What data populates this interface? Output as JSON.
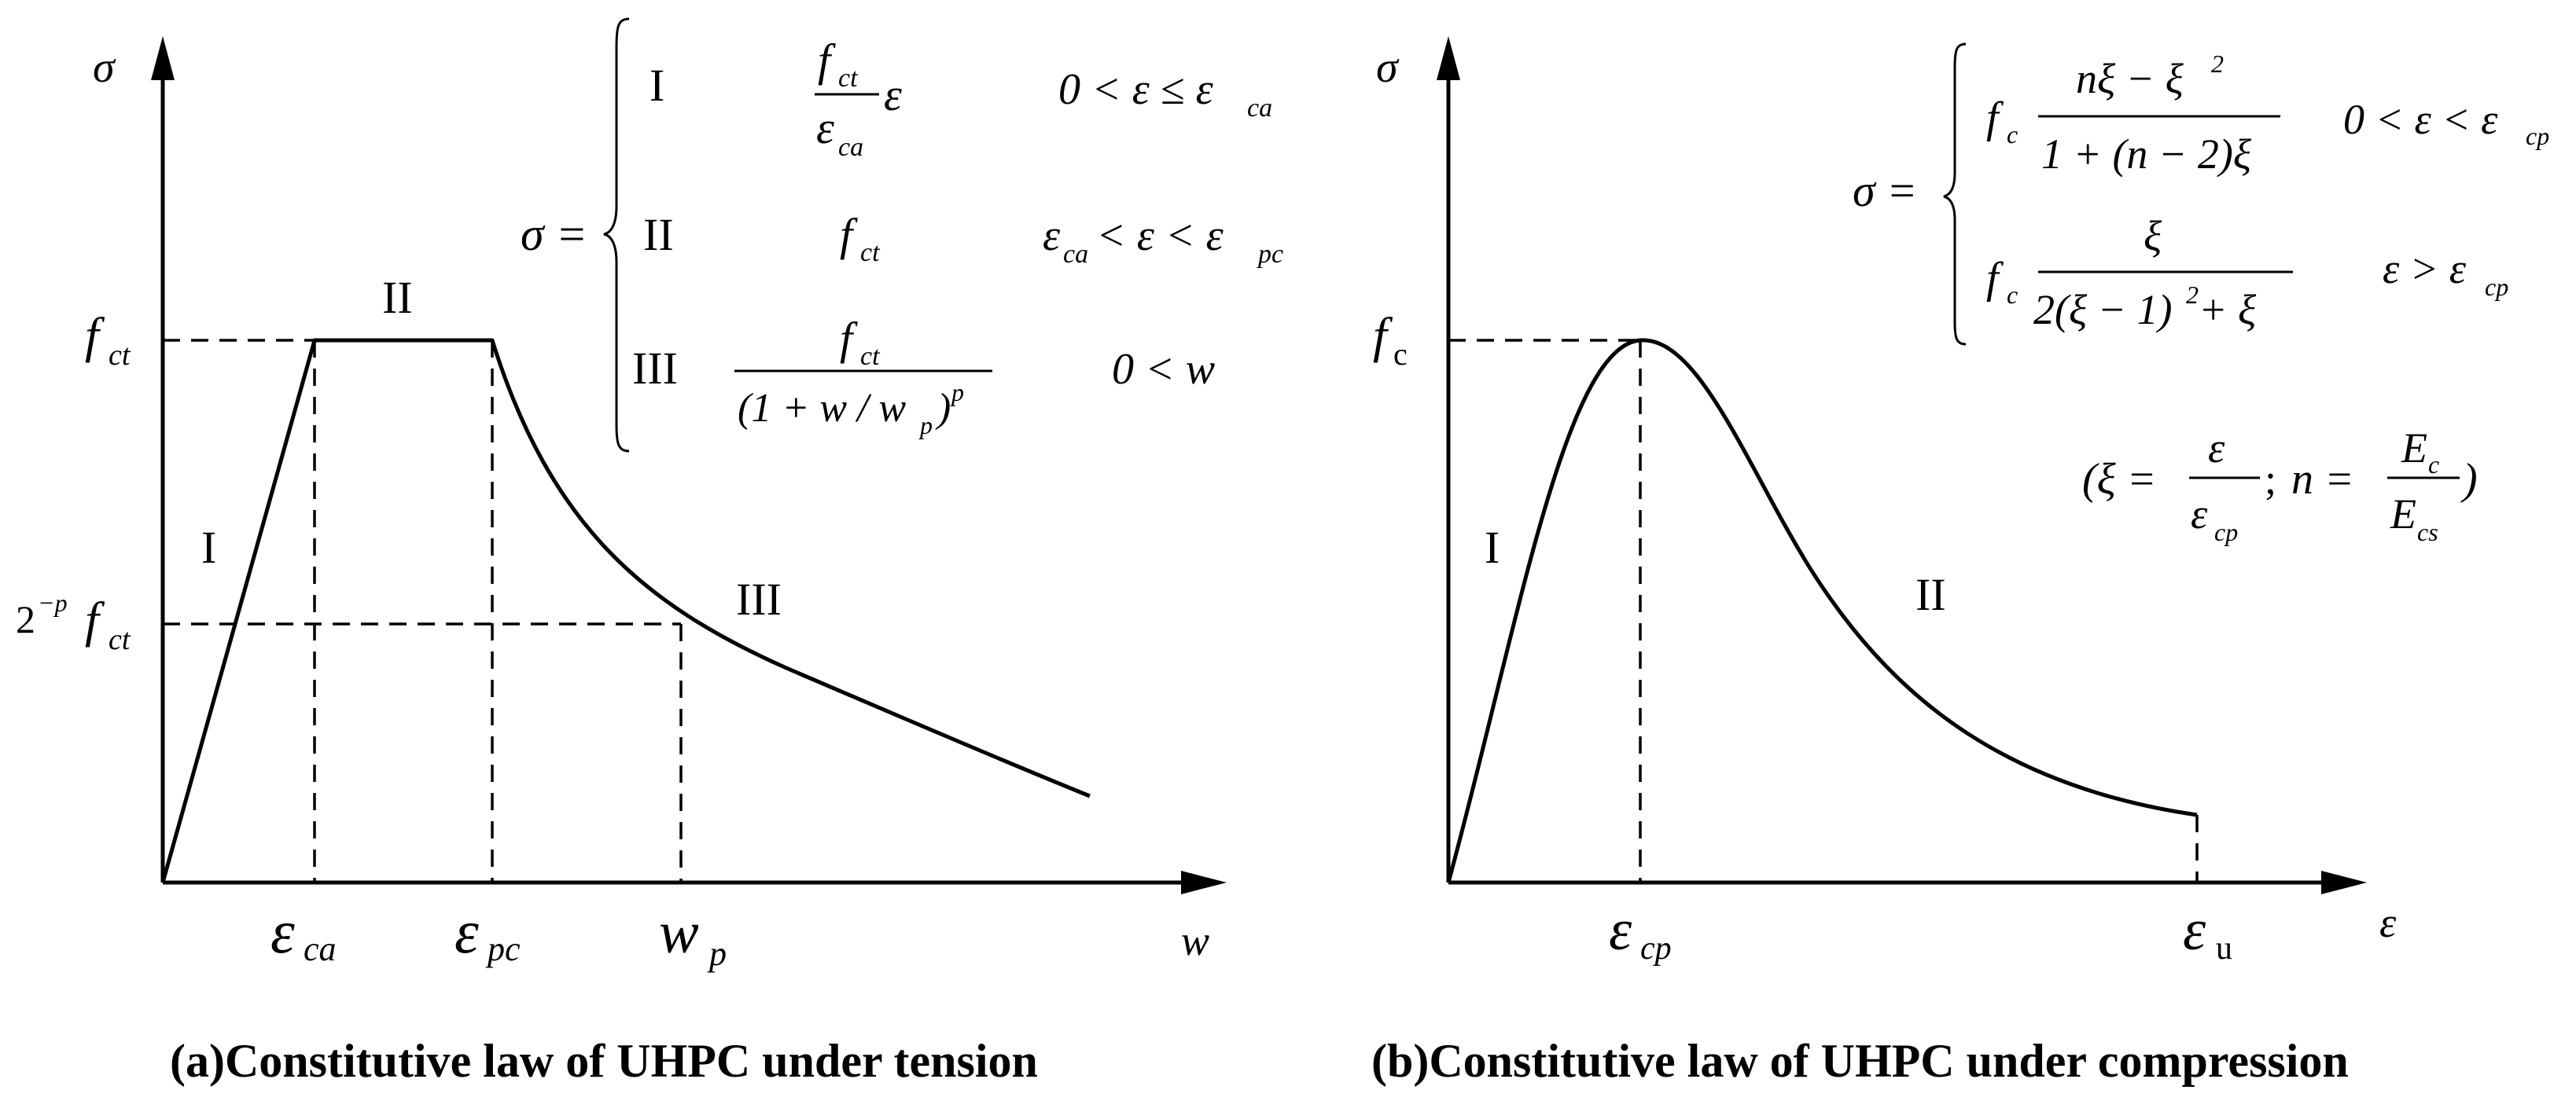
{
  "panel_a": {
    "caption": "(a)Constitutive law of UHPC under tension",
    "y_axis_label": "σ",
    "x_axis_label": "w",
    "y_ticks": {
      "f": "f",
      "ct": "ct",
      "two": "2",
      "minus_p": "−p"
    },
    "x_ticks": {
      "eps": "ε",
      "ca": "ca",
      "pc": "pc",
      "w": "w",
      "p": "p"
    },
    "regions": {
      "r1": "I",
      "r2": "II",
      "r3": "III"
    },
    "equation": {
      "sigma_eq": "σ =",
      "row1": {
        "label": "I",
        "num_f": "f",
        "num_sub": "ct",
        "den_eps": "ε",
        "den_sub": "ca",
        "tail": "ε",
        "cond": "0 < ε ≤ ε",
        "cond_sub": "ca"
      },
      "row2": {
        "label": "II",
        "expr_f": "f",
        "expr_sub": "ct",
        "cond": "ε",
        "cond_sub1": "ca",
        "cond_mid": " < ε < ε",
        "cond_sub2": "pc"
      },
      "row3": {
        "label": "III",
        "num_f": "f",
        "num_sub": "ct",
        "den": "(1 + w / w",
        "den_sub": "p",
        "den_close": ")",
        "den_sup": "p",
        "cond": "0 < w"
      }
    }
  },
  "panel_b": {
    "caption": "(b)Constitutive law of UHPC under compression",
    "y_axis_label": "σ",
    "x_axis_label": "ε",
    "y_ticks": {
      "f": "f",
      "c": "c"
    },
    "x_ticks": {
      "eps": "ε",
      "cp": "cp",
      "u": "u"
    },
    "regions": {
      "r1": "I",
      "r2": "II"
    },
    "equation": {
      "sigma_eq": "σ =",
      "row1": {
        "f": "f",
        "f_sub": "c",
        "num": "nξ − ξ",
        "num_sup": "2",
        "den": "1 + (n − 2)ξ",
        "cond": "0 < ε < ε",
        "cond_sub": "cp"
      },
      "row2": {
        "f": "f",
        "f_sub": "c",
        "num": "ξ",
        "den": "2(ξ − 1)",
        "den_sup": "2",
        "den_tail": " + ξ",
        "cond": "ε > ε",
        "cond_sub": "cp"
      },
      "params": {
        "open": "(ξ =",
        "eps": "ε",
        "eps2": "ε",
        "eps2_sub": "cp",
        "semi": ";",
        "n_eq": "n =",
        "E1": "E",
        "E1_sub": "c",
        "E2": "E",
        "E2_sub": "cs",
        "close": ")"
      }
    }
  }
}
